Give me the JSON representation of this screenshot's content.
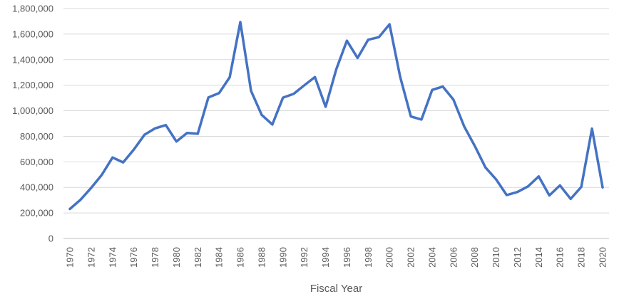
{
  "chart_data": {
    "type": "line",
    "title": "",
    "xlabel": "Fiscal Year",
    "ylabel": "",
    "ylim": [
      0,
      1800000
    ],
    "yticks": [
      0,
      200000,
      400000,
      600000,
      800000,
      1000000,
      1200000,
      1400000,
      1600000,
      1800000
    ],
    "ytick_labels": [
      "0",
      "200,000",
      "400,000",
      "600,000",
      "800,000",
      "1,000,000",
      "1,200,000",
      "1,400,000",
      "1,600,000",
      "1,800,000"
    ],
    "xlim": [
      1970,
      2020
    ],
    "xtick_labels": [
      "1970",
      "1972",
      "1974",
      "1976",
      "1978",
      "1980",
      "1982",
      "1984",
      "1986",
      "1988",
      "1990",
      "1992",
      "1994",
      "1996",
      "1998",
      "2000",
      "2002",
      "2004",
      "2006",
      "2008",
      "2010",
      "2012",
      "2014",
      "2016",
      "2018",
      "2020"
    ],
    "grid": true,
    "legend": "none",
    "line_color": "#4472c4",
    "series": [
      {
        "x": [
          1970,
          1971,
          1972,
          1973,
          1974,
          1975,
          1976,
          1977,
          1978,
          1979,
          1980,
          1981,
          1982,
          1983,
          1984,
          1985,
          1986,
          1987,
          1988,
          1989,
          1990,
          1991,
          1992,
          1993,
          1994,
          1995,
          1996,
          1997,
          1998,
          1999,
          2000,
          2001,
          2002,
          2003,
          2004,
          2005,
          2006,
          2007,
          2008,
          2009,
          2010,
          2011,
          2012,
          2013,
          2014,
          2015,
          2016,
          2017,
          2018,
          2019,
          2020
        ],
        "values": [
          231000,
          303000,
          397000,
          499000,
          634000,
          596000,
          696000,
          812000,
          862000,
          888000,
          759000,
          826000,
          820000,
          1104000,
          1138000,
          1262000,
          1694000,
          1156000,
          968000,
          892000,
          1103000,
          1132000,
          1199000,
          1264000,
          1031000,
          1324000,
          1548000,
          1413000,
          1556000,
          1576000,
          1677000,
          1266000,
          955000,
          931000,
          1163000,
          1189000,
          1087000,
          878000,
          725000,
          556000,
          463000,
          340000,
          364000,
          408000,
          486000,
          337000,
          416000,
          310000,
          404000,
          860000,
          400000
        ]
      }
    ]
  }
}
